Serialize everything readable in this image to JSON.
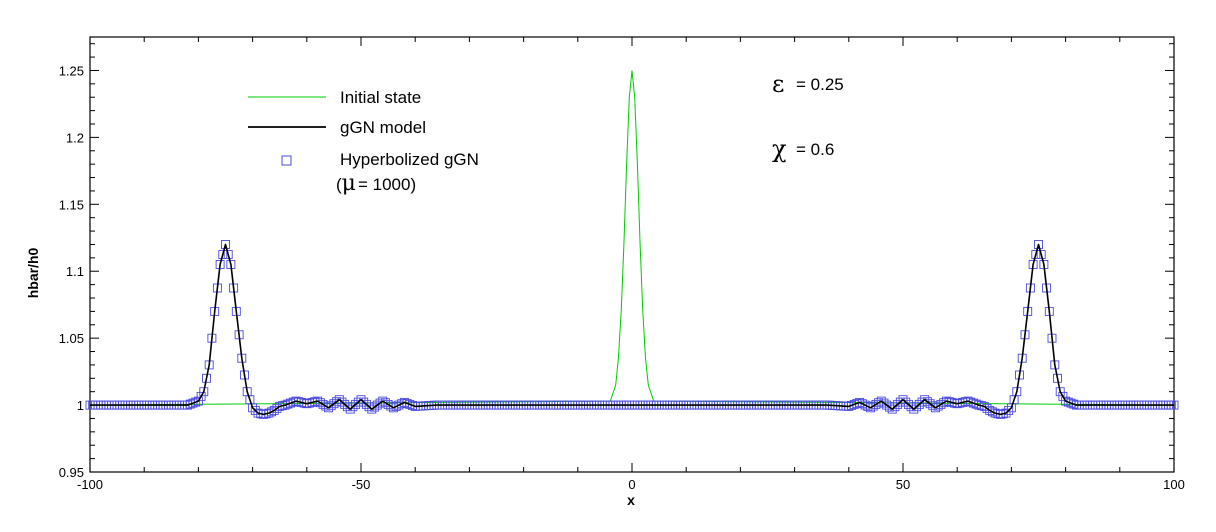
{
  "chart_data": {
    "type": "line",
    "title": "",
    "xlabel": "x",
    "ylabel": "hbar/h0",
    "xlim": [
      -100,
      100
    ],
    "ylim": [
      0.95,
      1.275
    ],
    "xticks": [
      "-100",
      "-50",
      "0",
      "50",
      "100"
    ],
    "yticks": [
      "0.95",
      "1",
      "1.05",
      "1.1",
      "1.15",
      "1.2",
      "1.25"
    ],
    "grid": false,
    "legend_placement": "top-left",
    "series": [
      {
        "name": "Initial state",
        "style": "line",
        "color": "#00cc00",
        "x": [
          -4,
          -3,
          -2.5,
          -2,
          -1.5,
          -1,
          -0.5,
          0,
          0.5,
          1,
          1.5,
          2,
          2.5,
          3,
          4
        ],
        "y": [
          1.003,
          1.015,
          1.035,
          1.07,
          1.12,
          1.18,
          1.23,
          1.25,
          1.23,
          1.18,
          1.12,
          1.07,
          1.035,
          1.015,
          1.003
        ]
      },
      {
        "name": "gGN model",
        "style": "line",
        "color": "#000000",
        "x": [
          -100,
          -82,
          -80,
          -79,
          -78,
          -77,
          -76,
          -75,
          -74,
          -73,
          -72,
          -71,
          -70,
          -69,
          -68,
          -67,
          -66,
          -65,
          -64,
          -62,
          -60,
          -58,
          -56,
          -54,
          -52,
          -50,
          -48,
          -46,
          -44,
          -42,
          -40,
          -36,
          -30,
          30,
          36,
          40,
          42,
          44,
          46,
          48,
          50,
          52,
          54,
          56,
          58,
          60,
          62,
          64,
          65,
          66,
          67,
          68,
          69,
          70,
          71,
          72,
          73,
          74,
          75,
          76,
          77,
          78,
          79,
          80,
          82,
          100
        ],
        "y": [
          1.0,
          1.0,
          1.003,
          1.01,
          1.03,
          1.07,
          1.105,
          1.12,
          1.105,
          1.07,
          1.035,
          1.01,
          0.998,
          0.994,
          0.993,
          0.994,
          0.996,
          0.999,
          1.0,
          1.003,
          1.001,
          1.003,
          0.998,
          1.004,
          0.997,
          1.004,
          0.997,
          1.003,
          0.998,
          1.002,
          0.999,
          1.0,
          1.0,
          1.0,
          1.0,
          0.999,
          1.002,
          0.998,
          1.003,
          0.997,
          1.004,
          0.997,
          1.004,
          0.998,
          1.003,
          1.001,
          1.003,
          1.0,
          0.999,
          0.996,
          0.994,
          0.993,
          0.994,
          0.998,
          1.01,
          1.035,
          1.07,
          1.105,
          1.12,
          1.105,
          1.07,
          1.03,
          1.01,
          1.003,
          1.0,
          1.0
        ]
      },
      {
        "name": "Hyperbolized gGN",
        "name_line2_prefix": "(",
        "name_line2_mu": "μ",
        "name_line2_value": "= 1000)",
        "style": "markers",
        "marker": "square",
        "color": "#4a4ae0"
      }
    ],
    "annotations": [
      {
        "symbol": "ε",
        "value": "= 0.25"
      },
      {
        "symbol": "χ",
        "value": "= 0.6"
      }
    ]
  }
}
